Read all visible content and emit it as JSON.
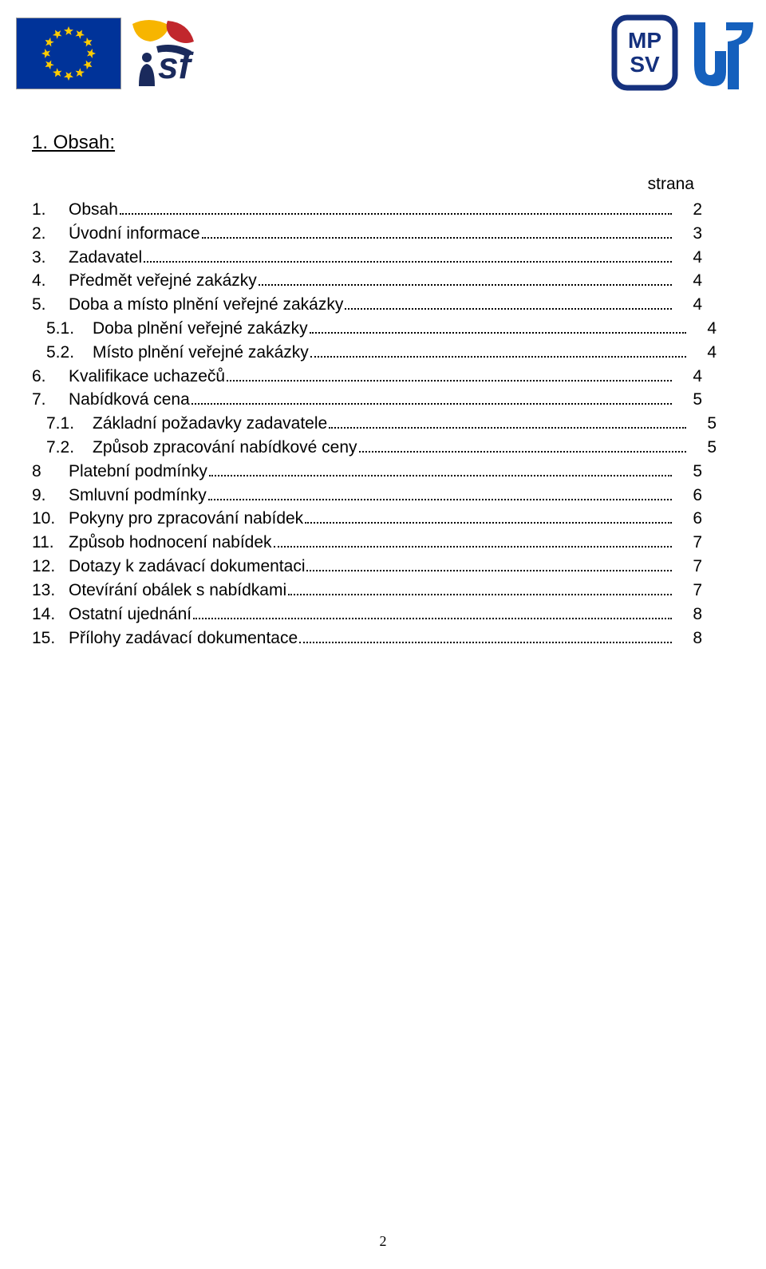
{
  "heading": "1. Obsah:",
  "strana_label": "strana",
  "page_number": "2",
  "toc": [
    {
      "num": "1.",
      "title": "Obsah",
      "page": "2",
      "sub": false
    },
    {
      "num": "2.",
      "title": "Úvodní informace",
      "page": "3",
      "sub": false
    },
    {
      "num": "3.",
      "title": "Zadavatel",
      "page": "4",
      "sub": false
    },
    {
      "num": "4.",
      "title": "Předmět veřejné zakázky",
      "page": "4",
      "sub": false
    },
    {
      "num": "5.",
      "title": "Doba a místo plnění veřejné zakázky",
      "page": "4",
      "sub": false
    },
    {
      "num": "5.1.",
      "title": "Doba plnění veřejné zakázky",
      "page": "4",
      "sub": true
    },
    {
      "num": "5.2.",
      "title": "Místo plnění veřejné zakázky",
      "page": "4",
      "sub": true
    },
    {
      "num": "6.",
      "title": "Kvalifikace uchazečů",
      "page": "4",
      "sub": false
    },
    {
      "num": "7.",
      "title": "Nabídková cena",
      "page": "5",
      "sub": false
    },
    {
      "num": "7.1.",
      "title": "Základní požadavky zadavatele",
      "page": "5",
      "sub": true
    },
    {
      "num": "7.2.",
      "title": "Způsob zpracování nabídkové ceny",
      "page": "5",
      "sub": true
    },
    {
      "num": "8",
      "title": "Platební podmínky",
      "page": "5",
      "sub": false
    },
    {
      "num": "9.",
      "title": "Smluvní podmínky",
      "page": "6",
      "sub": false
    },
    {
      "num": "10.",
      "title": "Pokyny pro zpracování nabídek",
      "page": "6",
      "sub": false
    },
    {
      "num": "11.",
      "title": "Způsob hodnocení nabídek",
      "page": "7",
      "sub": false
    },
    {
      "num": "12.",
      "title": "Dotazy k zadávací dokumentaci",
      "page": "7",
      "sub": false
    },
    {
      "num": "13.",
      "title": "Otevírání obálek s nabídkami",
      "page": "7",
      "sub": false
    },
    {
      "num": "14.",
      "title": "Ostatní ujednání",
      "page": "8",
      "sub": false
    },
    {
      "num": "15.",
      "title": "Přílohy zadávací dokumentace",
      "page": "8",
      "sub": false
    }
  ],
  "colors": {
    "eu_blue": "#003399",
    "eu_gold": "#ffcc00",
    "mpsv_blue": "#15317e",
    "up_blue": "#1560bd",
    "esf_dark": "#1a2a5c",
    "esf_red": "#c1272d",
    "esf_yellow": "#f7b500"
  }
}
